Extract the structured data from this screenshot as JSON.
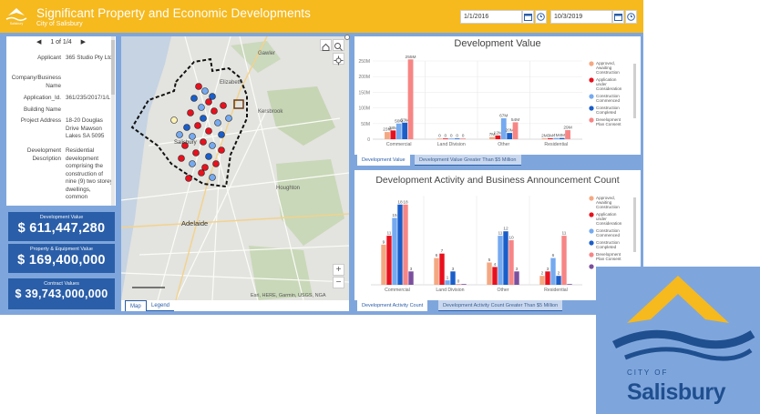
{
  "header": {
    "title": "Significant Property and Economic Developments",
    "subtitle": "City of Salisbury",
    "start_date": "1/1/2016",
    "end_date": "10/3/2019",
    "bg_color": "#f6b91e"
  },
  "info": {
    "pager": "1 of 1/4",
    "rows": [
      {
        "label": "Applicant",
        "value": "365 Studio Pty Ltd"
      },
      {
        "label": "Company/Business Name",
        "value": ""
      },
      {
        "label": "Application_Id.",
        "value": "361/235/2017/1/L"
      },
      {
        "label": "Building Name",
        "value": ""
      },
      {
        "label": "Project Address",
        "value": "18-20 Douglas Drive Mawson Lakes SA 5095"
      },
      {
        "label": "Development Description",
        "value": "Residential development comprising the construction of nine (9) two storey dwellings, common"
      }
    ]
  },
  "cards": [
    {
      "label": "Development Value",
      "value": "$ 611,447,280"
    },
    {
      "label": "Property & Equipment Value",
      "value": "$ 169,400,000"
    },
    {
      "label": "Contract Values",
      "value": "$ 39,743,000,000"
    }
  ],
  "map": {
    "labels": [
      "Salisbury",
      "Adelaide",
      "Elizabeth",
      "Gawler",
      "Kersbrook",
      "Houghton"
    ],
    "attribution": "Esri, HERE, Garmin, USGS, NGA",
    "zoom_in": "+",
    "zoom_out": "−",
    "tabs": [
      "Map",
      "Legend"
    ]
  },
  "chart1": {
    "tabs": [
      "Development Value",
      "Development Value Greater Than $5 Million"
    ],
    "chart_data": {
      "type": "bar",
      "title": "Development Value",
      "categories": [
        "Commercial",
        "Land Division",
        "Other",
        "Residential"
      ],
      "ylim": [
        0,
        250000000
      ],
      "y_ticks": [
        "0",
        "50M",
        "100M",
        "150M",
        "200M",
        "250M"
      ],
      "series": [
        {
          "name": "Approved, Awaiting Construction",
          "color": "#f4a882",
          "values": [
            23000000,
            0,
            7000000,
            2000000
          ],
          "labels": [
            "23M",
            "0",
            "7M",
            "2M"
          ]
        },
        {
          "name": "Application under Consideration",
          "color": "#e8111e",
          "values": [
            28000000,
            0,
            12000000,
            3000000
          ],
          "labels": [
            "28M",
            "0",
            "12M",
            "3M"
          ]
        },
        {
          "name": "Construction Commenced",
          "color": "#75aaf0",
          "values": [
            50000000,
            0,
            67000000,
            4000000
          ],
          "labels": [
            "50M",
            "0",
            "67M",
            "4M"
          ]
        },
        {
          "name": "Construction Completed",
          "color": "#1a5ec9",
          "values": [
            53000000,
            0,
            20000000,
            4000000
          ],
          "labels": [
            "53M",
            "0",
            "20M",
            "4M"
          ]
        },
        {
          "name": "Development Plan Consent",
          "color": "#f78585",
          "values": [
            255000000,
            0,
            54000000,
            29000000
          ],
          "labels": [
            "255M",
            "0",
            "54M",
            "29M"
          ]
        }
      ]
    }
  },
  "chart2": {
    "tabs": [
      "Development Activity Count",
      "Development Activity Count Greater Than $5 Million"
    ],
    "chart_data": {
      "type": "bar",
      "title": "Development Activity and Business Announcement Count",
      "categories": [
        "Commercial",
        "Land Division",
        "Other",
        "Residential"
      ],
      "ylim": [
        0,
        20
      ],
      "series": [
        {
          "name": "Approved, Awaiting Construction",
          "color": "#f4a882",
          "values": [
            9,
            6,
            5,
            2
          ],
          "labels": [
            "9",
            "6",
            "5",
            "2"
          ]
        },
        {
          "name": "Application under Consideration",
          "color": "#e8111e",
          "values": [
            11,
            7,
            4,
            3
          ],
          "labels": [
            "11",
            "7",
            "4",
            "3"
          ]
        },
        {
          "name": "Construction Commenced",
          "color": "#75aaf0",
          "values": [
            15,
            1,
            11,
            6
          ],
          "labels": [
            "15",
            "1",
            "11",
            "6"
          ]
        },
        {
          "name": "Construction Completed",
          "color": "#1a5ec9",
          "values": [
            18,
            3,
            12,
            2
          ],
          "labels": [
            "18",
            "3",
            "12",
            "2"
          ]
        },
        {
          "name": "Development Plan Consent",
          "color": "#f78585",
          "values": [
            18,
            0,
            10,
            11
          ],
          "labels": [
            "18",
            "0",
            "10",
            "11"
          ]
        },
        {
          "name": "",
          "color": "#7b4f9e",
          "values": [
            3,
            0,
            3,
            0
          ],
          "labels": [
            "3",
            "",
            "3",
            ""
          ]
        }
      ]
    }
  },
  "biglogo": {
    "city": "CITY OF",
    "name": "Salisbury"
  }
}
